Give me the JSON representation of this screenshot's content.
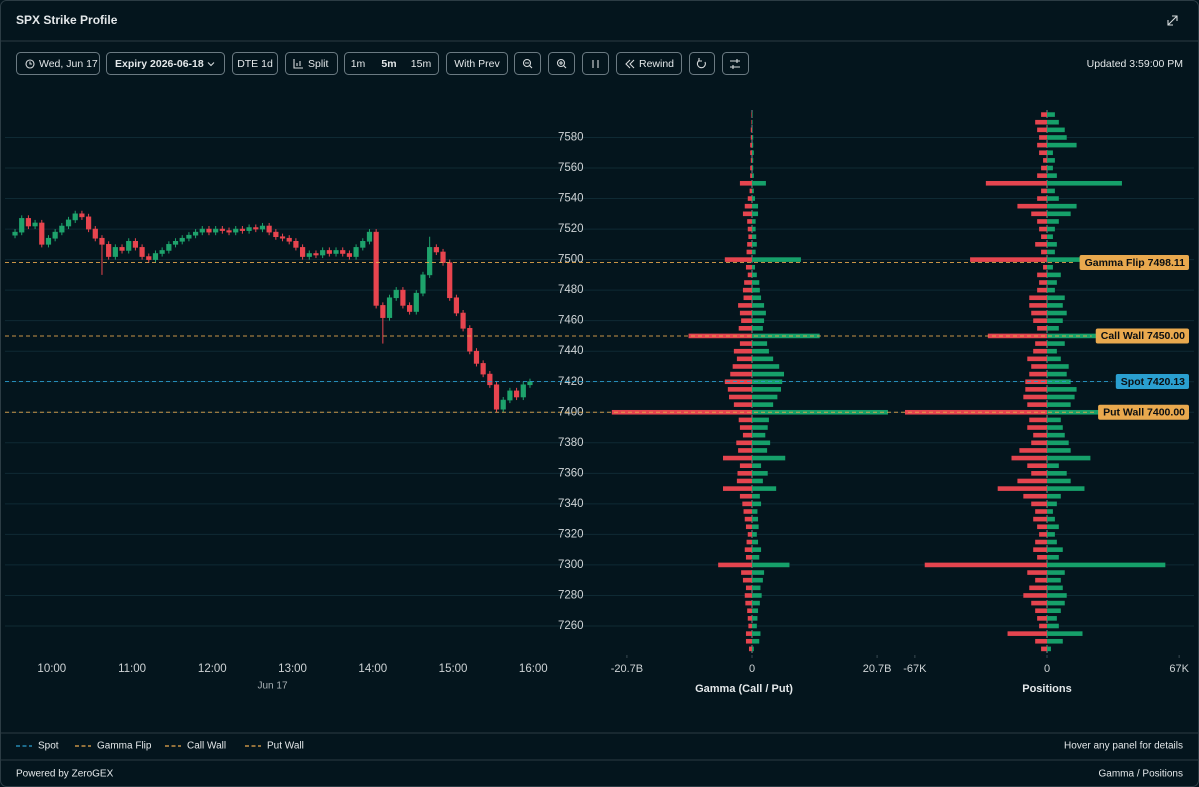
{
  "header": {
    "title": "SPX Strike Profile"
  },
  "toolbar": {
    "date": "Wed, Jun 17",
    "expiry": "Expiry 2026-06-18",
    "dte": "DTE 1d",
    "split": "Split",
    "intervals": [
      "1m",
      "5m",
      "15m"
    ],
    "active_interval": "5m",
    "with_prev": "With Prev",
    "rewind": "Rewind",
    "updated": "Updated 3:59:00 PM"
  },
  "chart_data": [
    {
      "type": "candlestick",
      "x": [
        "09:30",
        "09:35",
        "09:40",
        "09:45",
        "09:50",
        "09:55",
        "10:00",
        "10:05",
        "10:10",
        "10:15",
        "10:20",
        "10:25",
        "10:30",
        "10:35",
        "10:40",
        "10:45",
        "10:50",
        "10:55",
        "11:00",
        "11:05",
        "11:10",
        "11:15",
        "11:20",
        "11:25",
        "11:30",
        "11:35",
        "11:40",
        "11:45",
        "11:50",
        "11:55",
        "12:00",
        "12:05",
        "12:10",
        "12:15",
        "12:20",
        "12:25",
        "12:30",
        "12:35",
        "12:40",
        "12:45",
        "12:50",
        "12:55",
        "13:00",
        "13:05",
        "13:10",
        "13:15",
        "13:20",
        "13:25",
        "13:30",
        "13:35",
        "13:40",
        "13:45",
        "13:50",
        "13:55",
        "14:00",
        "14:05",
        "14:10",
        "14:15",
        "14:20",
        "14:25",
        "14:30",
        "14:35",
        "14:40",
        "14:45",
        "14:50",
        "14:55",
        "15:00",
        "15:05",
        "15:10",
        "15:15",
        "15:20",
        "15:25",
        "15:30",
        "15:35",
        "15:40",
        "15:45",
        "15:50",
        "15:55"
      ],
      "open": [
        7516,
        7518,
        7527,
        7522,
        7524,
        7510,
        7514,
        7518,
        7522,
        7526,
        7530,
        7528,
        7520,
        7514,
        7510,
        7502,
        7508,
        7506,
        7512,
        7508,
        7502,
        7500,
        7504,
        7506,
        7510,
        7512,
        7514,
        7516,
        7518,
        7520,
        7518,
        7520,
        7519,
        7518,
        7520,
        7519,
        7521,
        7520,
        7522,
        7518,
        7515,
        7514,
        7512,
        7508,
        7502,
        7504,
        7503,
        7506,
        7504,
        7506,
        7504,
        7502,
        7508,
        7512,
        7518,
        7470,
        7462,
        7475,
        7480,
        7470,
        7466,
        7478,
        7490,
        7508,
        7505,
        7498,
        7475,
        7465,
        7455,
        7440,
        7432,
        7425,
        7418,
        7402,
        7408,
        7414,
        7410,
        7418
      ],
      "high": [
        7520,
        7529,
        7529,
        7526,
        7526,
        7516,
        7520,
        7524,
        7528,
        7532,
        7532,
        7530,
        7522,
        7516,
        7512,
        7510,
        7510,
        7514,
        7514,
        7510,
        7504,
        7506,
        7508,
        7512,
        7514,
        7516,
        7518,
        7520,
        7522,
        7522,
        7522,
        7522,
        7521,
        7522,
        7522,
        7523,
        7523,
        7524,
        7524,
        7520,
        7517,
        7516,
        7514,
        7510,
        7506,
        7506,
        7508,
        7508,
        7508,
        7508,
        7506,
        7510,
        7514,
        7520,
        7520,
        7472,
        7477,
        7482,
        7482,
        7472,
        7480,
        7492,
        7515,
        7510,
        7507,
        7500,
        7477,
        7467,
        7457,
        7442,
        7434,
        7427,
        7420,
        7410,
        7416,
        7416,
        7420,
        7422
      ],
      "low": [
        7514,
        7516,
        7520,
        7520,
        7508,
        7508,
        7512,
        7516,
        7520,
        7524,
        7526,
        7518,
        7512,
        7490,
        7500,
        7500,
        7504,
        7504,
        7506,
        7500,
        7498,
        7498,
        7502,
        7504,
        7508,
        7510,
        7512,
        7514,
        7516,
        7516,
        7516,
        7517,
        7516,
        7516,
        7517,
        7517,
        7518,
        7518,
        7516,
        7513,
        7512,
        7510,
        7506,
        7500,
        7500,
        7501,
        7501,
        7502,
        7502,
        7502,
        7500,
        7500,
        7506,
        7510,
        7468,
        7445,
        7460,
        7473,
        7468,
        7464,
        7464,
        7476,
        7488,
        7503,
        7496,
        7473,
        7463,
        7453,
        7438,
        7430,
        7423,
        7416,
        7400,
        7400,
        7406,
        7408,
        7408,
        7416
      ],
      "close": [
        7518,
        7527,
        7522,
        7524,
        7510,
        7514,
        7518,
        7522,
        7526,
        7530,
        7528,
        7520,
        7514,
        7510,
        7502,
        7508,
        7506,
        7512,
        7508,
        7502,
        7500,
        7504,
        7506,
        7510,
        7512,
        7514,
        7516,
        7518,
        7520,
        7518,
        7520,
        7519,
        7518,
        7520,
        7519,
        7521,
        7520,
        7522,
        7518,
        7515,
        7514,
        7512,
        7508,
        7502,
        7504,
        7503,
        7506,
        7504,
        7506,
        7504,
        7502,
        7508,
        7512,
        7518,
        7470,
        7462,
        7475,
        7480,
        7470,
        7466,
        7478,
        7490,
        7508,
        7505,
        7498,
        7475,
        7465,
        7455,
        7440,
        7432,
        7425,
        7418,
        7402,
        7408,
        7414,
        7410,
        7418,
        7420
      ],
      "up_color": "#1ea36c",
      "down_color": "#e8454f",
      "xlim": [
        "09:25",
        "16:05"
      ],
      "xticks": [
        "10:00",
        "11:00",
        "12:00",
        "13:00",
        "14:00",
        "15:00",
        "16:00"
      ],
      "x_sublabel": "Jun 17",
      "ylim": [
        7241,
        7598
      ],
      "yticks": [
        7260,
        7280,
        7300,
        7320,
        7340,
        7360,
        7380,
        7400,
        7420,
        7440,
        7460,
        7480,
        7500,
        7520,
        7540,
        7560,
        7580
      ],
      "grid": true
    },
    {
      "type": "hbar",
      "xlabel": "Gamma (Call / Put)",
      "categories": [
        7245,
        7250,
        7255,
        7260,
        7265,
        7270,
        7275,
        7280,
        7285,
        7290,
        7295,
        7300,
        7305,
        7310,
        7315,
        7320,
        7325,
        7330,
        7335,
        7340,
        7345,
        7350,
        7355,
        7360,
        7365,
        7370,
        7375,
        7380,
        7385,
        7390,
        7395,
        7400,
        7405,
        7410,
        7415,
        7420,
        7425,
        7430,
        7435,
        7440,
        7445,
        7450,
        7455,
        7460,
        7465,
        7470,
        7475,
        7480,
        7485,
        7490,
        7495,
        7500,
        7505,
        7510,
        7515,
        7520,
        7525,
        7530,
        7535,
        7540,
        7545,
        7550,
        7555,
        7560,
        7565,
        7570,
        7575,
        7580,
        7585,
        7590,
        7595
      ],
      "series": [
        {
          "color": "#16a06a",
          "values": [
            0.3,
            1.2,
            1.4,
            0.8,
            0.9,
            1.0,
            1.3,
            1.6,
            1.4,
            1.8,
            2.0,
            6.2,
            1.2,
            1.5,
            1.0,
            0.8,
            1.1,
            1.0,
            0.9,
            1.5,
            1.3,
            4.0,
            1.8,
            2.6,
            1.5,
            5.5,
            2.5,
            3.0,
            2.2,
            2.6,
            2.8,
            22.5,
            3.5,
            4.2,
            4.8,
            5.0,
            5.3,
            4.5,
            3.5,
            2.8,
            2.5,
            11.2,
            1.8,
            2.0,
            2.3,
            2.0,
            1.5,
            1.3,
            1.2,
            0.8,
            0.5,
            8.1,
            0.6,
            0.8,
            0.7,
            0.6,
            0.6,
            1.0,
            1.0,
            0.5,
            0.3,
            2.3,
            0.3,
            0.2,
            0.2,
            0.3,
            0.2,
            0.2,
            0.1,
            0.1,
            0.1
          ]
        },
        {
          "color": "#e5454f",
          "values": [
            -0.5,
            -1.0,
            -1.0,
            -0.6,
            -0.7,
            -0.8,
            -1.1,
            -1.2,
            -1.0,
            -1.5,
            -1.8,
            -5.6,
            -1.0,
            -1.2,
            -0.9,
            -0.7,
            -1.0,
            -1.2,
            -1.4,
            -1.6,
            -2.0,
            -4.8,
            -2.5,
            -2.4,
            -2.0,
            -4.8,
            -2.3,
            -2.6,
            -1.5,
            -2.0,
            -2.2,
            -23.2,
            -3.0,
            -3.8,
            -4.0,
            -4.5,
            -3.6,
            -3.2,
            -2.5,
            -3.0,
            -2.0,
            -10.5,
            -2.2,
            -1.8,
            -2.0,
            -2.3,
            -1.4,
            -1.5,
            -1.3,
            -0.7,
            -1.0,
            -4.5,
            -0.9,
            -0.8,
            -0.6,
            -0.7,
            -0.8,
            -1.5,
            -1.2,
            -0.7,
            -0.4,
            -2.0,
            -0.3,
            -0.3,
            -0.2,
            -0.3,
            -0.3,
            -0.2,
            -0.2,
            -0.1,
            -0.1
          ]
        }
      ],
      "xlim": [
        -23.5,
        23.5
      ],
      "xticks": [
        {
          "value": -20.7,
          "label": "-20.7B"
        },
        0,
        {
          "value": 20.7,
          "label": "20.7B"
        }
      ],
      "ylim": [
        7241,
        7598
      ]
    },
    {
      "type": "hbar",
      "xlabel": "Positions",
      "categories": [
        7245,
        7250,
        7255,
        7260,
        7265,
        7270,
        7275,
        7280,
        7285,
        7290,
        7295,
        7300,
        7305,
        7310,
        7315,
        7320,
        7325,
        7330,
        7335,
        7340,
        7345,
        7350,
        7355,
        7360,
        7365,
        7370,
        7375,
        7380,
        7385,
        7390,
        7395,
        7400,
        7405,
        7410,
        7415,
        7420,
        7425,
        7430,
        7435,
        7440,
        7445,
        7450,
        7455,
        7460,
        7465,
        7470,
        7475,
        7480,
        7485,
        7490,
        7495,
        7500,
        7505,
        7510,
        7515,
        7520,
        7525,
        7530,
        7535,
        7540,
        7545,
        7550,
        7555,
        7560,
        7565,
        7570,
        7575,
        7580,
        7585,
        7590,
        7595
      ],
      "series": [
        {
          "color": "#16a06a",
          "values": [
            2,
            8,
            18,
            6,
            5,
            7,
            9,
            10,
            8,
            7,
            9,
            60,
            6,
            8,
            5,
            4,
            6,
            4,
            3,
            5,
            7,
            19,
            12,
            10,
            6,
            22,
            12,
            11,
            9,
            8,
            7,
            37,
            12,
            14,
            15,
            12,
            10,
            11,
            7,
            5,
            9,
            37,
            6,
            8,
            10,
            8,
            9,
            4,
            5,
            7,
            3,
            23,
            4,
            5,
            3,
            4,
            6,
            12,
            15,
            6,
            4,
            38,
            5,
            3,
            4,
            3,
            15,
            10,
            9,
            6,
            4
          ]
        },
        {
          "color": "#e5454f",
          "values": [
            -3,
            -6,
            -20,
            -4,
            -5,
            -6,
            -8,
            -12,
            -9,
            -6,
            -10,
            -62,
            -5,
            -7,
            -6,
            -4,
            -5,
            -7,
            -6,
            -8,
            -12,
            -25,
            -15,
            -8,
            -10,
            -18,
            -14,
            -8,
            -7,
            -10,
            -9,
            -72,
            -10,
            -12,
            -11,
            -11,
            -9,
            -8,
            -10,
            -7,
            -6,
            -30,
            -5,
            -7,
            -8,
            -9,
            -9,
            -5,
            -4,
            -5,
            -2,
            -39,
            -3,
            -6,
            -3,
            -4,
            -5,
            -8,
            -15,
            -5,
            -3,
            -31,
            -5,
            -3,
            -2,
            -4,
            -5,
            -4,
            -5,
            -6,
            -3
          ]
        }
      ],
      "xlim": [
        -72,
        72
      ],
      "xticks": [
        {
          "value": -67,
          "label": "-67K"
        },
        0,
        {
          "value": 67,
          "label": "67K"
        }
      ],
      "ylim": [
        7241,
        7598
      ]
    }
  ],
  "levels": [
    {
      "name": "Spot",
      "value": 7420.13,
      "label": "Spot 7420.13",
      "color": "#2a9fd0"
    },
    {
      "name": "Gamma Flip",
      "value": 7498.11,
      "label": "Gamma Flip 7498.11",
      "color": "#e9a94e"
    },
    {
      "name": "Call Wall",
      "value": 7450.0,
      "label": "Call Wall 7450.00",
      "color": "#e9a94e"
    },
    {
      "name": "Put Wall",
      "value": 7400.0,
      "label": "Put Wall 7400.00",
      "color": "#e9a94e"
    }
  ],
  "legend_note": "Hover any panel for details",
  "footer": {
    "left": "Powered by ZeroGEX",
    "right": "Gamma / Positions"
  }
}
